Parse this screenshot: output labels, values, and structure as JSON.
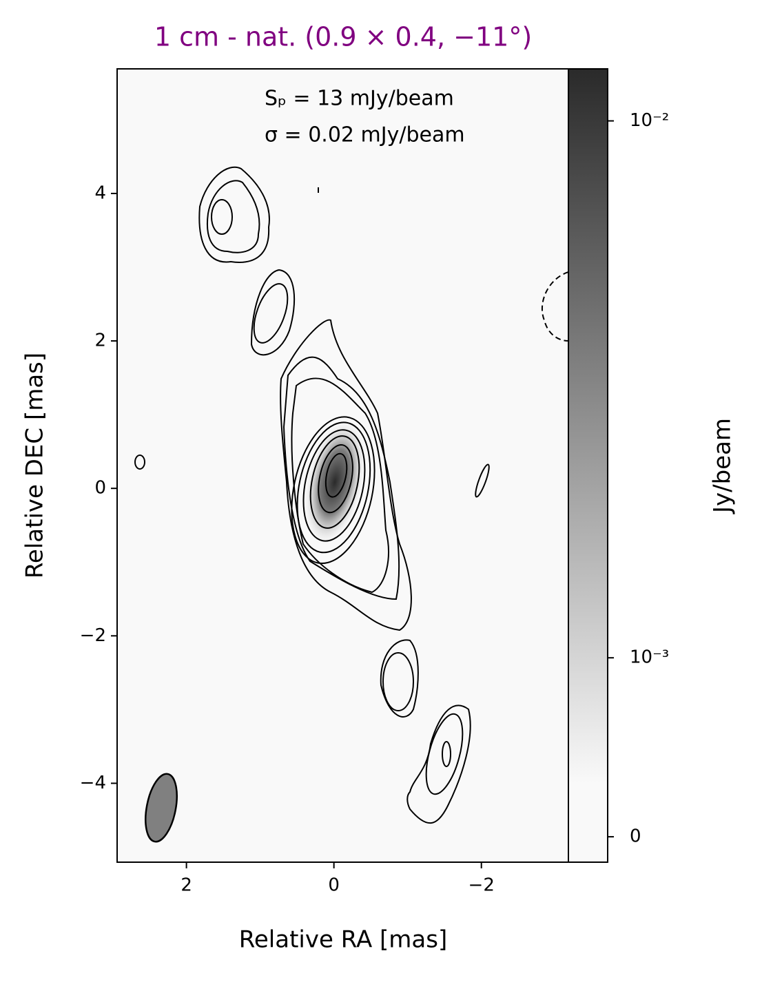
{
  "chart_data": {
    "type": "image",
    "title": "1 cm - nat. (0.9 × 0.4, −11°)",
    "title_color": "#800080",
    "xlabel": "Relative RA [mas]",
    "ylabel": "Relative DEC [mas]",
    "xlim": [
      2.94,
      -3.18
    ],
    "ylim": [
      -5.07,
      5.69
    ],
    "xticks": [
      2,
      0,
      {
        "value": -2,
        "label": "−2"
      }
    ],
    "yticks": [
      {
        "value": -4,
        "label": "−4"
      },
      {
        "value": -2,
        "label": "−2"
      },
      0,
      2,
      4
    ],
    "annotations": [
      "Sₚ = 13 mJy/beam",
      "σ = 0.02 mJy/beam"
    ],
    "cmap": [
      "#f9f9f9",
      "#2a2a2a"
    ],
    "colorbar": {
      "label": "Jy/beam",
      "scale": "symlog",
      "linthresh": 0.001,
      "clim": [
        -0.000142,
        0.0125
      ],
      "ticks": [
        0,
        {
          "value": 0.001,
          "label": "10⁻³"
        },
        {
          "value": 0.01,
          "label": "10⁻²"
        }
      ]
    }
  }
}
